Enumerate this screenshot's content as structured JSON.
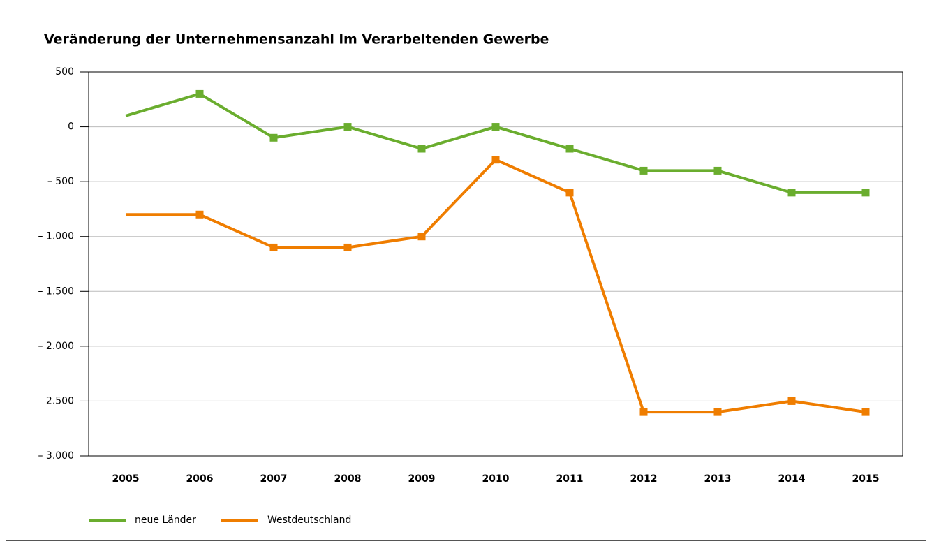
{
  "chart_data": {
    "type": "line",
    "title": "Veränderung der Unternehmensanzahl im Verarbeitenden Gewerbe",
    "categories": [
      "2005",
      "2006",
      "2007",
      "2008",
      "2009",
      "2010",
      "2011",
      "2012",
      "2013",
      "2014",
      "2015"
    ],
    "series": [
      {
        "name": "neue Länder",
        "color": "#6aad2e",
        "values": [
          100,
          300,
          -100,
          0,
          -200,
          0,
          -200,
          -400,
          -400,
          -600,
          -600
        ]
      },
      {
        "name": "Westdeutschland",
        "color": "#ef7d00",
        "values": [
          -800,
          -800,
          -1100,
          -1100,
          -1000,
          -300,
          -600,
          -2600,
          -2600,
          -2500,
          -2600
        ]
      }
    ],
    "ylim": [
      -3000,
      500
    ],
    "yticks": [
      {
        "value": -3000,
        "label": "– 3.000"
      },
      {
        "value": -2500,
        "label": "– 2.500"
      },
      {
        "value": -2000,
        "label": "– 2.000"
      },
      {
        "value": -1500,
        "label": "– 1.500"
      },
      {
        "value": -1000,
        "label": "– 1.000"
      },
      {
        "value": -500,
        "label": "– 500"
      },
      0,
      500
    ],
    "grid": true,
    "legend": "bottom"
  }
}
